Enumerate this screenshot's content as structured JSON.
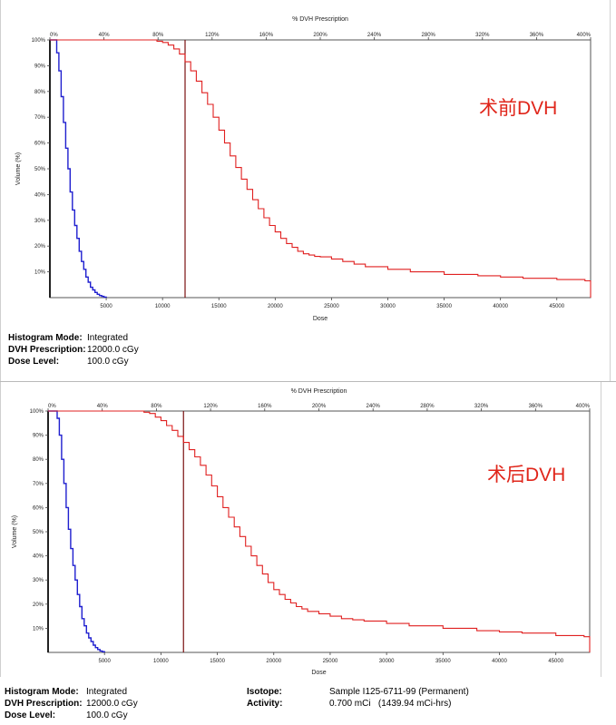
{
  "chart_data": [
    {
      "type": "line",
      "top_axis_title": "% DVH Prescription",
      "xlabel": "Dose",
      "ylabel": "Volume (%)",
      "annotation": "术前DVH",
      "xlim": [
        0,
        48000
      ],
      "ylim": [
        0,
        100
      ],
      "top_xlim": [
        0,
        400
      ],
      "x_ticks": [
        5000,
        10000,
        15000,
        20000,
        25000,
        30000,
        35000,
        40000,
        45000
      ],
      "x_tick_labels": [
        "5000",
        "10000",
        "15000",
        "20000",
        "25000",
        "30000",
        "35000",
        "40000",
        "45000"
      ],
      "top_ticks": [
        0,
        40,
        80,
        120,
        160,
        200,
        240,
        280,
        320,
        360,
        400
      ],
      "top_tick_labels": [
        "0%",
        "40%",
        "80%",
        "120%",
        "160%",
        "200%",
        "240%",
        "280%",
        "320%",
        "360%",
        "400%"
      ],
      "y_ticks": [
        10,
        20,
        30,
        40,
        50,
        60,
        70,
        80,
        90,
        100
      ],
      "y_tick_labels": [
        "10%",
        "20%",
        "30%",
        "40%",
        "50%",
        "60%",
        "70%",
        "80%",
        "90%",
        "100%"
      ],
      "prescription_line_x": 12000,
      "series": [
        {
          "color": "#1f1fcf",
          "x": [
            0,
            400,
            600,
            800,
            1000,
            1200,
            1400,
            1600,
            1800,
            2000,
            2200,
            2400,
            2600,
            2800,
            3000,
            3200,
            3400,
            3600,
            3800,
            4000,
            4200,
            4400,
            4600,
            4800,
            5000
          ],
          "y": [
            100,
            100,
            95,
            88,
            78,
            68,
            58,
            50,
            41,
            34,
            28,
            23,
            18,
            14,
            11,
            8,
            6,
            4,
            3,
            2,
            1.3,
            0.8,
            0.5,
            0.2,
            0
          ]
        },
        {
          "color": "#e02020",
          "x": [
            0,
            9000,
            9500,
            10000,
            10500,
            11000,
            11500,
            12000,
            12500,
            13000,
            13500,
            14000,
            14500,
            15000,
            15500,
            16000,
            16500,
            17000,
            17500,
            18000,
            18500,
            19000,
            19500,
            20000,
            20500,
            21000,
            21500,
            22000,
            22500,
            23000,
            23500,
            24000,
            25000,
            26000,
            27000,
            28000,
            30000,
            32000,
            35000,
            38000,
            40000,
            42000,
            45000,
            47500,
            48000
          ],
          "y": [
            100,
            100,
            99.5,
            99,
            98,
            96.5,
            94.5,
            91.5,
            88,
            84,
            79.5,
            75,
            70,
            65,
            60,
            55,
            50.5,
            46,
            42,
            38,
            34.5,
            31,
            28,
            25.5,
            23,
            21,
            19.5,
            18,
            17,
            16.5,
            16,
            15.8,
            15,
            14,
            13,
            12,
            11,
            10,
            9,
            8.5,
            8,
            7.5,
            7,
            6.5,
            0
          ]
        }
      ]
    },
    {
      "type": "line",
      "top_axis_title": "% DVH Prescription",
      "xlabel": "Dose",
      "ylabel": "Volume (%)",
      "annotation": "术后DVH",
      "xlim": [
        0,
        48000
      ],
      "ylim": [
        0,
        100
      ],
      "top_xlim": [
        0,
        400
      ],
      "x_ticks": [
        5000,
        10000,
        15000,
        20000,
        25000,
        30000,
        35000,
        40000,
        45000
      ],
      "x_tick_labels": [
        "5000",
        "10000",
        "15000",
        "20000",
        "25000",
        "30000",
        "35000",
        "40000",
        "45000"
      ],
      "top_ticks": [
        0,
        40,
        80,
        120,
        160,
        200,
        240,
        280,
        320,
        360,
        400
      ],
      "top_tick_labels": [
        "0%",
        "40%",
        "80%",
        "120%",
        "160%",
        "200%",
        "240%",
        "280%",
        "320%",
        "360%",
        "400%"
      ],
      "y_ticks": [
        10,
        20,
        30,
        40,
        50,
        60,
        70,
        80,
        90,
        100
      ],
      "y_tick_labels": [
        "10%",
        "20%",
        "30%",
        "40%",
        "50%",
        "60%",
        "70%",
        "80%",
        "90%",
        "100%"
      ],
      "prescription_line_x": 12000,
      "series": [
        {
          "color": "#1f1fcf",
          "x": [
            0,
            600,
            800,
            1000,
            1200,
            1400,
            1600,
            1800,
            2000,
            2200,
            2400,
            2600,
            2800,
            3000,
            3200,
            3400,
            3600,
            3800,
            4000,
            4200,
            4400,
            4600,
            4800,
            5000
          ],
          "y": [
            100,
            100,
            97,
            90,
            80,
            70,
            60,
            51,
            43,
            36,
            30,
            24,
            19,
            14,
            11,
            8,
            6,
            4.5,
            3,
            2,
            1.2,
            0.6,
            0.3,
            0
          ]
        },
        {
          "color": "#e02020",
          "x": [
            0,
            8000,
            8500,
            9000,
            9500,
            10000,
            10500,
            11000,
            11500,
            12000,
            12500,
            13000,
            13500,
            14000,
            14500,
            15000,
            15500,
            16000,
            16500,
            17000,
            17500,
            18000,
            18500,
            19000,
            19500,
            20000,
            20500,
            21000,
            21500,
            22000,
            22500,
            23000,
            24000,
            25000,
            26000,
            27000,
            28000,
            30000,
            32000,
            35000,
            38000,
            40000,
            42000,
            45000,
            47500,
            48000
          ],
          "y": [
            100,
            100,
            99.5,
            99,
            97.5,
            96,
            94,
            92,
            89.5,
            87,
            84,
            81,
            77.5,
            73.5,
            69,
            64.5,
            60,
            56,
            52,
            48,
            44,
            40,
            36,
            32.5,
            29,
            26,
            24,
            22,
            20.5,
            19,
            18,
            17,
            16,
            15,
            14,
            13.5,
            13,
            12,
            11,
            10,
            9,
            8.5,
            8,
            7,
            6.5,
            0
          ]
        }
      ]
    }
  ],
  "info_top": [
    {
      "label": "Histogram Mode:",
      "value": "Integrated"
    },
    {
      "label": "DVH Prescription:",
      "value": "12000.0 cGy"
    },
    {
      "label": "Dose Level:",
      "value": "100.0 cGy"
    }
  ],
  "info_bottom_left": [
    {
      "label": "Histogram Mode:",
      "value": "Integrated"
    },
    {
      "label": "DVH Prescription:",
      "value": "12000.0 cGy"
    },
    {
      "label": "Dose Level:",
      "value": "100.0 cGy"
    }
  ],
  "info_bottom_right": [
    {
      "label": "Isotope:",
      "value": "Sample I125-6711-99 (Permanent)"
    },
    {
      "label": "Activity:",
      "value": "0.700 mCi   (1439.94 mCi-hrs)"
    }
  ]
}
